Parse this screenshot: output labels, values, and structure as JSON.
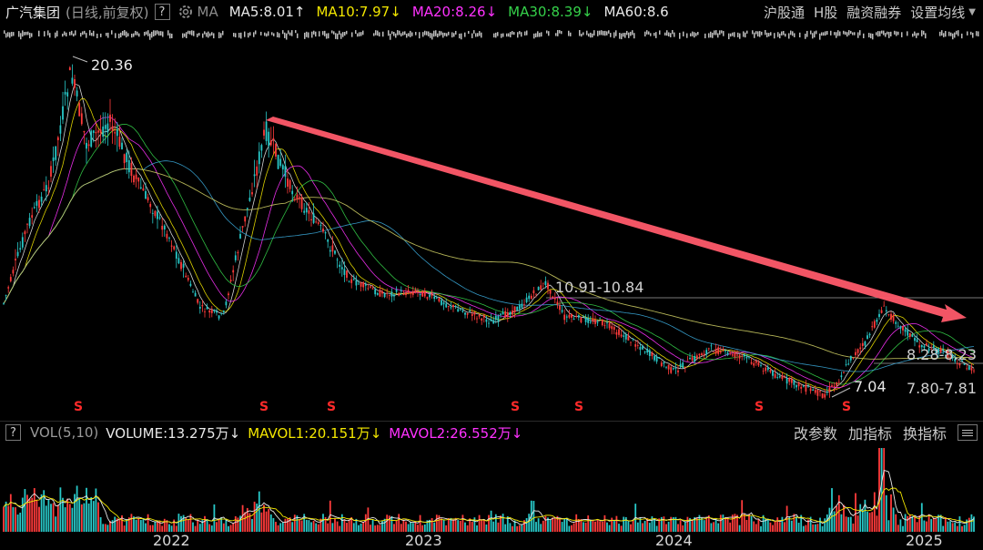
{
  "header": {
    "stock_name": "广汽集团",
    "period": "(日线,前复权)",
    "help": "?",
    "ma_label": "MA",
    "ma_items": [
      {
        "text": "MA5:8.01",
        "arrow": "↑",
        "color": "#e8e8e8"
      },
      {
        "text": "MA10:7.97",
        "arrow": "↓",
        "color": "#f2e600"
      },
      {
        "text": "MA20:8.26",
        "arrow": "↓",
        "color": "#ff32ff"
      },
      {
        "text": "MA30:8.39",
        "arrow": "↓",
        "color": "#35d14a"
      },
      {
        "text": "MA60:8.6",
        "arrow": "",
        "color": "#e8e8e8"
      }
    ],
    "menu": [
      "沪股通",
      "H股",
      "融资融券",
      "设置均线"
    ]
  },
  "annotations": {
    "high": "20.36",
    "resistance": "10.91-10.84",
    "range1": "8.28-8.23",
    "low": "7.04",
    "range2": "7.80-7.81",
    "marker": "S"
  },
  "volume": {
    "help": "?",
    "label": "VOL(5,10)",
    "items": [
      {
        "text": "VOLUME:13.275万",
        "arrow": "↓",
        "color": "#e8e8e8"
      },
      {
        "text": "MAVOL1:20.151万",
        "arrow": "↓",
        "color": "#f2e600"
      },
      {
        "text": "MAVOL2:26.552万",
        "arrow": "↓",
        "color": "#ff32ff"
      }
    ],
    "menu": [
      "改参数",
      "加指标",
      "换指标"
    ]
  },
  "xaxis": [
    "2022",
    "2023",
    "2024",
    "2025"
  ],
  "colors": {
    "up": "#ff3b3b",
    "down": "#28c8c8",
    "ma5": "#e8e8e8",
    "ma10": "#f2e600",
    "ma20": "#ff32ff",
    "ma30": "#35d14a",
    "ma60": "#3aa7d8",
    "ma120": "#c8c860",
    "trend_arrow": "#ff5a6a"
  }
}
